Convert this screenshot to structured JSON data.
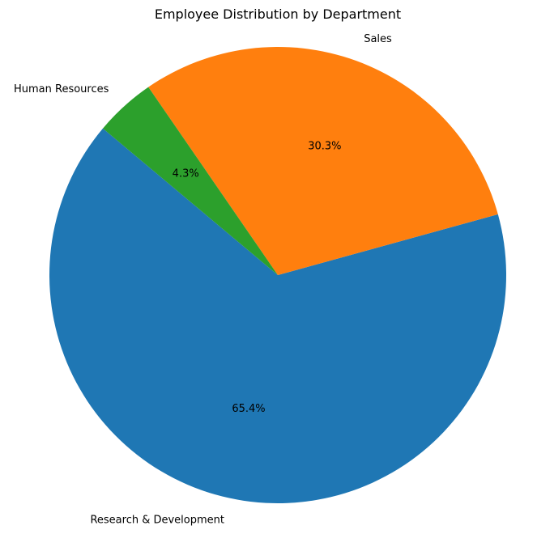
{
  "chart_data": {
    "type": "pie",
    "title": "Employee Distribution by Department",
    "slices": [
      {
        "label": "Research & Development",
        "value": 65.4,
        "pct_label": "65.4%",
        "color": "#1f77b4"
      },
      {
        "label": "Sales",
        "value": 30.3,
        "pct_label": "30.3%",
        "color": "#ff7f0e"
      },
      {
        "label": "Human Resources",
        "value": 4.3,
        "pct_label": "4.3%",
        "color": "#2ca02c"
      }
    ],
    "legend": "none"
  }
}
